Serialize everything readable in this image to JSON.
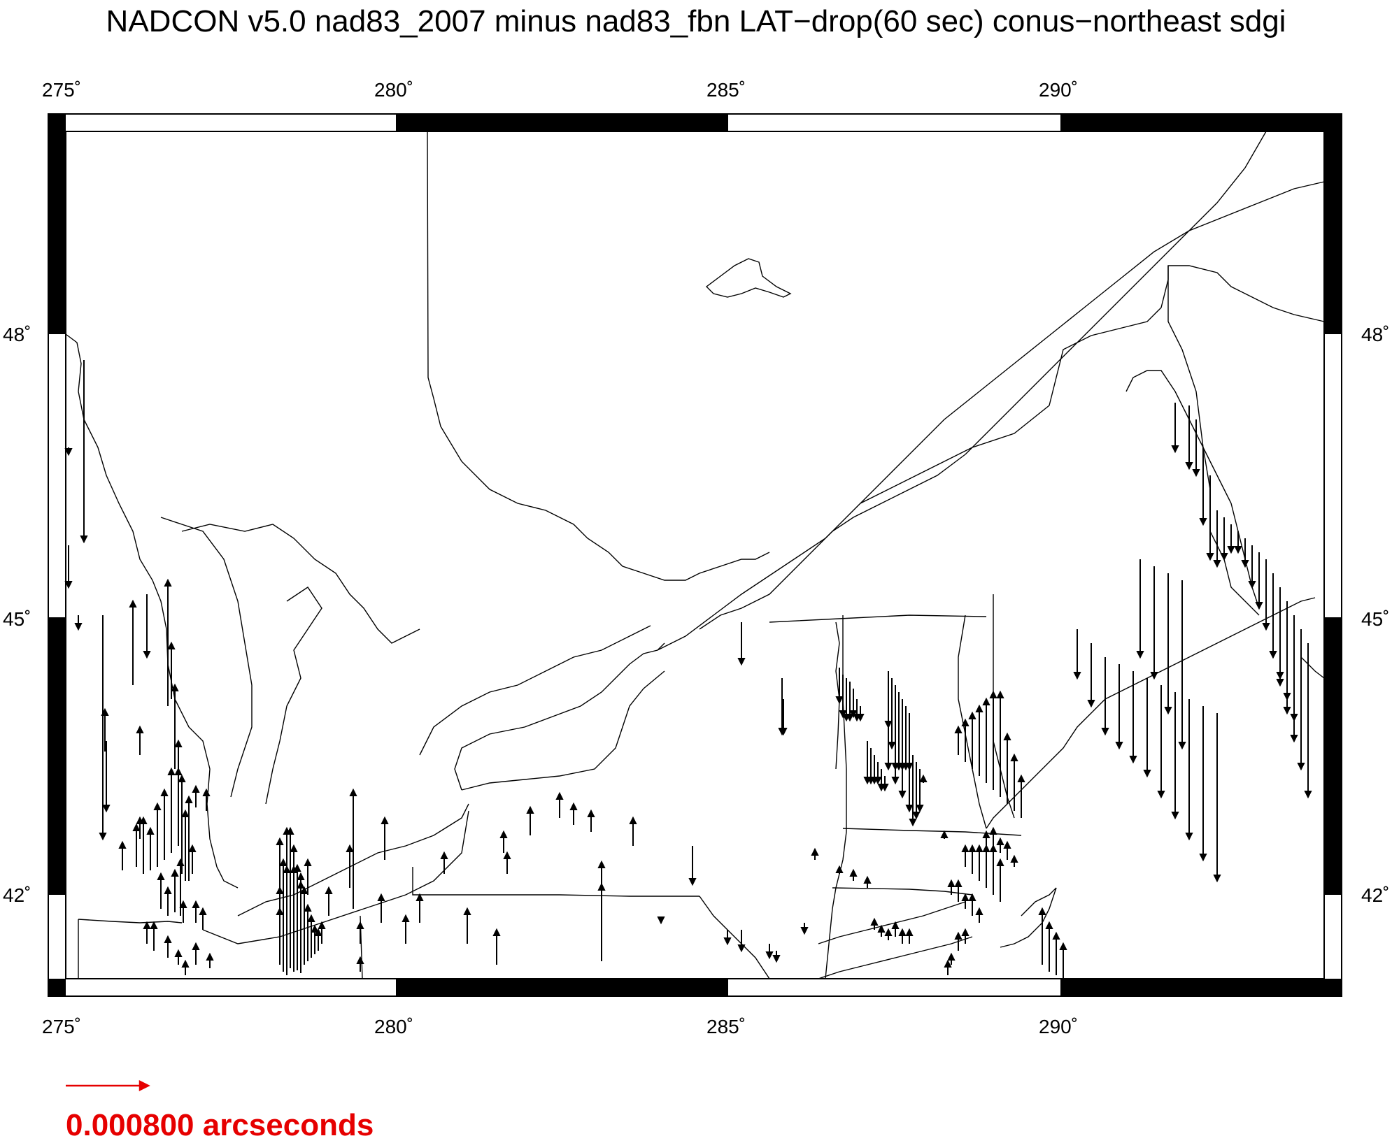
{
  "title": "NADCON v5.0 nad83_2007 minus nad83_fbn LAT−drop(60 sec) conus−northeast sdgi",
  "map": {
    "lon_range": [
      275,
      294.4
    ],
    "lat_range": [
      40.1,
      50.6
    ],
    "frame_style": "alternating black/white border",
    "x_tick_labels": [
      "275˚",
      "280˚",
      "285˚",
      "290˚"
    ],
    "y_tick_labels": [
      "48˚",
      "45˚",
      "42˚"
    ],
    "line_color": "#000000",
    "vector_color": "#000000"
  },
  "legend": {
    "label": "0.000800 arcseconds",
    "color": "#e60000"
  }
}
